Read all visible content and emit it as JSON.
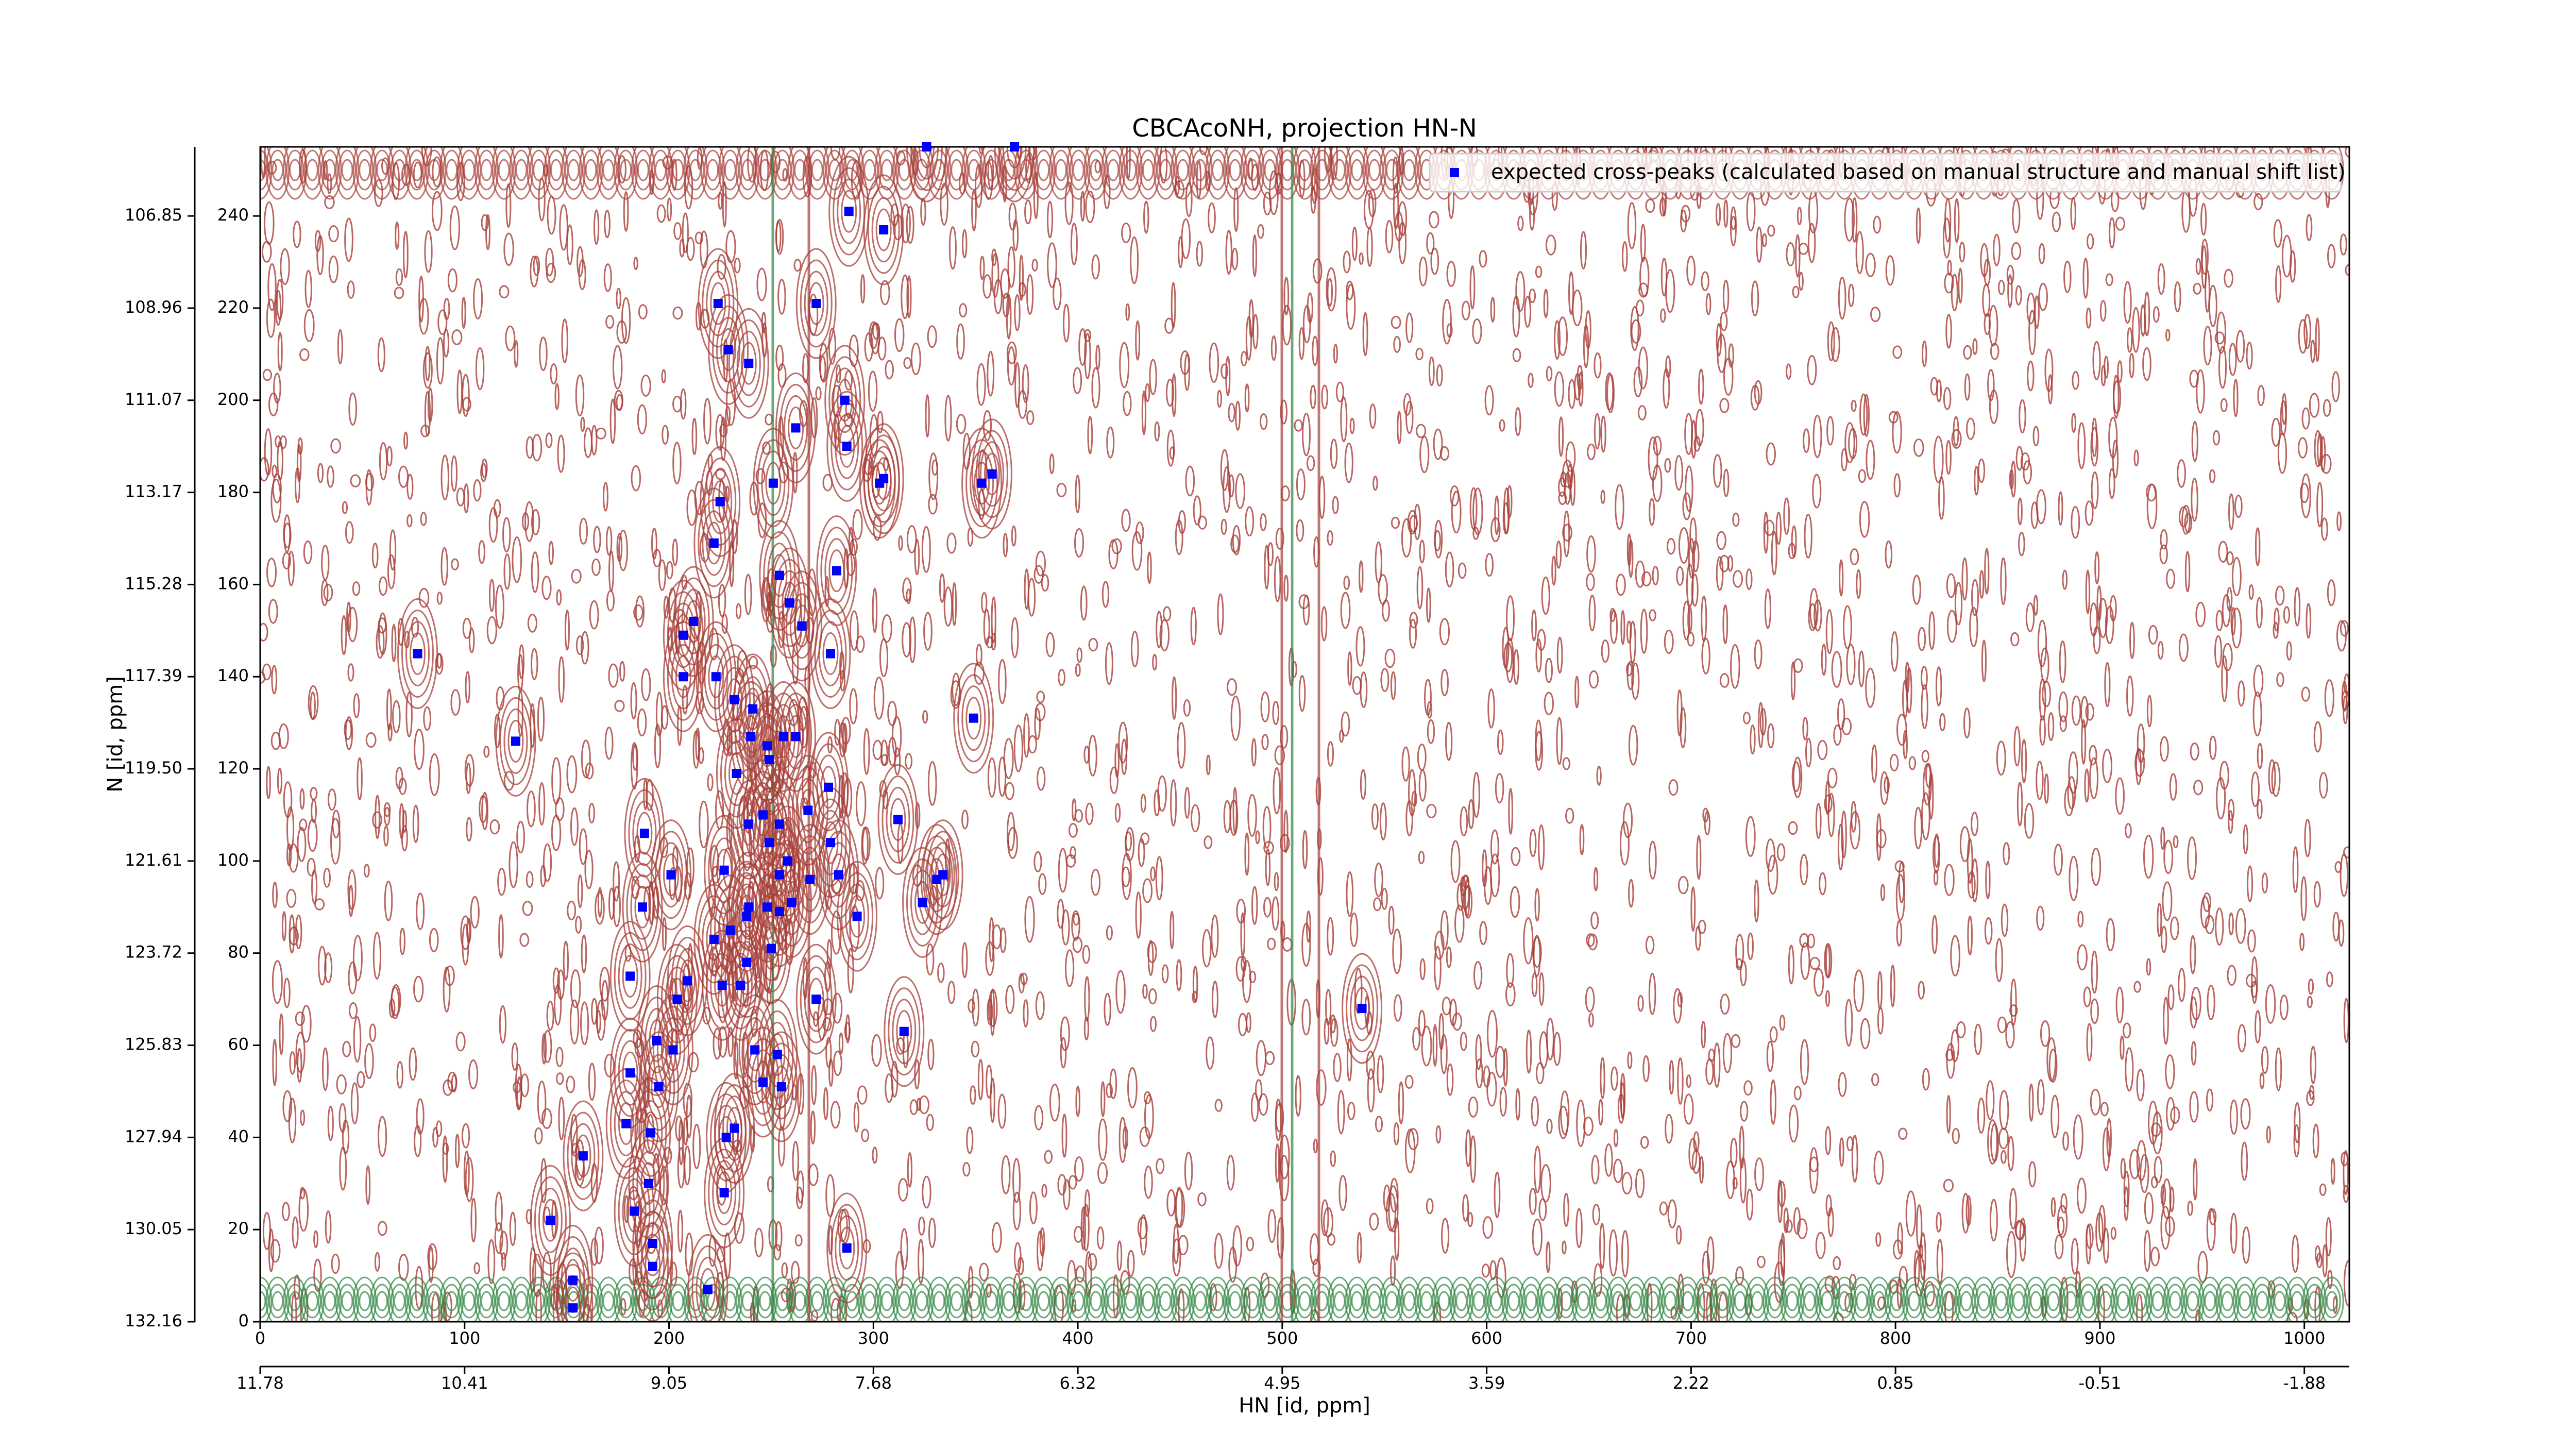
{
  "chart_data": {
    "type": "scatter",
    "title": "CBCAcoNH, projection HN-N",
    "xlabel": "HN [id, ppm]",
    "ylabel": "N [id, ppm]",
    "xlim": [
      0,
      1022
    ],
    "ylim": [
      0,
      255
    ],
    "xticks": [
      0,
      100,
      200,
      300,
      400,
      500,
      600,
      700,
      800,
      900,
      1000
    ],
    "yticks": [
      0,
      20,
      40,
      60,
      80,
      100,
      120,
      140,
      160,
      180,
      200,
      220,
      240
    ],
    "x2ticks": [
      {
        "value": 0,
        "label": "11.78"
      },
      {
        "value": 100,
        "label": "10.41"
      },
      {
        "value": 200,
        "label": "9.05"
      },
      {
        "value": 300,
        "label": "7.68"
      },
      {
        "value": 400,
        "label": "6.32"
      },
      {
        "value": 500,
        "label": "4.95"
      },
      {
        "value": 600,
        "label": "3.59"
      },
      {
        "value": 700,
        "label": "2.22"
      },
      {
        "value": 800,
        "label": "0.85"
      },
      {
        "value": 900,
        "label": "-0.51"
      },
      {
        "value": 1000,
        "label": "-1.88"
      }
    ],
    "y2ticks": [
      {
        "value": 0,
        "label": "132.16"
      },
      {
        "value": 20,
        "label": "130.05"
      },
      {
        "value": 40,
        "label": "127.94"
      },
      {
        "value": 60,
        "label": "125.83"
      },
      {
        "value": 80,
        "label": "123.72"
      },
      {
        "value": 100,
        "label": "121.61"
      },
      {
        "value": 120,
        "label": "119.50"
      },
      {
        "value": 140,
        "label": "117.39"
      },
      {
        "value": 160,
        "label": "115.28"
      },
      {
        "value": 180,
        "label": "113.17"
      },
      {
        "value": 200,
        "label": "111.07"
      },
      {
        "value": 220,
        "label": "108.96"
      },
      {
        "value": 240,
        "label": "106.85"
      }
    ],
    "legend": "upper right",
    "series": [
      {
        "name": "expected cross-peaks (calculated based on manual structure and manual shift list)",
        "color": "#0000ff",
        "x": [
          326,
          369,
          288,
          305,
          224,
          272,
          229,
          239,
          286,
          262,
          287,
          251,
          303,
          305,
          353,
          358,
          225,
          222,
          282,
          254,
          259,
          265,
          212,
          207,
          77,
          279,
          207,
          223,
          232,
          241,
          349,
          125,
          240,
          256,
          262,
          248,
          249,
          233,
          278,
          239,
          246,
          268,
          254,
          312,
          188,
          249,
          279,
          227,
          258,
          201,
          269,
          283,
          254,
          331,
          334,
          260,
          248,
          238,
          239,
          187,
          324,
          292,
          254,
          230,
          222,
          250,
          238,
          181,
          226,
          235,
          209,
          204,
          272,
          315,
          194,
          202,
          539,
          242,
          253,
          181,
          246,
          255,
          195,
          179,
          191,
          232,
          228,
          158,
          190,
          227,
          183,
          142,
          192,
          287,
          192,
          153,
          219,
          153
        ],
        "values": [
          255,
          255,
          241,
          237,
          221,
          221,
          211,
          208,
          200,
          194,
          190,
          182,
          182,
          183,
          182,
          184,
          178,
          169,
          163,
          162,
          156,
          151,
          152,
          149,
          145,
          145,
          140,
          140,
          135,
          133,
          131,
          126,
          127,
          127,
          127,
          125,
          122,
          119,
          116,
          108,
          110,
          111,
          108,
          109,
          106,
          104,
          104,
          98,
          100,
          97,
          96,
          97,
          97,
          96,
          97,
          91,
          90,
          88,
          90,
          90,
          91,
          88,
          89,
          85,
          83,
          81,
          78,
          75,
          73,
          73,
          74,
          70,
          70,
          63,
          61,
          59,
          68,
          59,
          58,
          54,
          52,
          51,
          51,
          43,
          41,
          42,
          40,
          36,
          30,
          28,
          24,
          22,
          17,
          16,
          12,
          9,
          7,
          3
        ]
      }
    ]
  }
}
